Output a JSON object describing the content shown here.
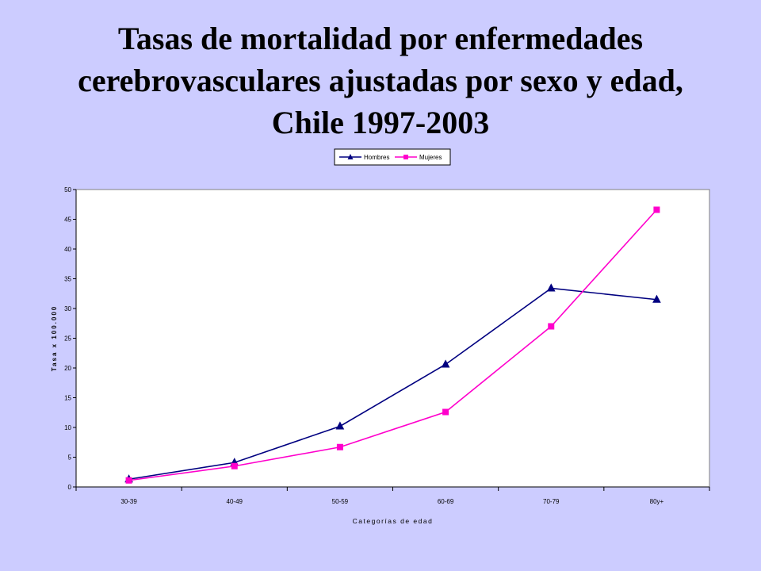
{
  "title_lines": [
    "Tasas de mortalidad por enfermedades",
    "cerebrovasculares ajustadas por sexo y edad,",
    "Chile 1997-2003"
  ],
  "chart_data": {
    "type": "line",
    "title": "Tasas de mortalidad por enfermedades cerebrovasculares ajustadas por sexo y edad, Chile 1997-2003",
    "categories": [
      "30-39",
      "40-49",
      "50-59",
      "60-69",
      "70-79",
      "80y+"
    ],
    "series": [
      {
        "name": "Hombres",
        "values": [
          1.3,
          4.1,
          10.2,
          20.6,
          33.4,
          31.5
        ],
        "color": "#000080",
        "marker": "triangle"
      },
      {
        "name": "Mujeres",
        "values": [
          1.1,
          3.5,
          6.7,
          12.6,
          27.0,
          46.6
        ],
        "color": "#ff00cc",
        "marker": "square"
      }
    ],
    "xlabel": "Categorías de edad",
    "ylabel": "Tasa x 100.000",
    "ylim": [
      0,
      50
    ],
    "yticks": [
      0,
      5,
      10,
      15,
      20,
      25,
      30,
      35,
      40,
      45,
      50
    ],
    "grid": false,
    "legend": "top-center",
    "background": "#ffffff"
  }
}
